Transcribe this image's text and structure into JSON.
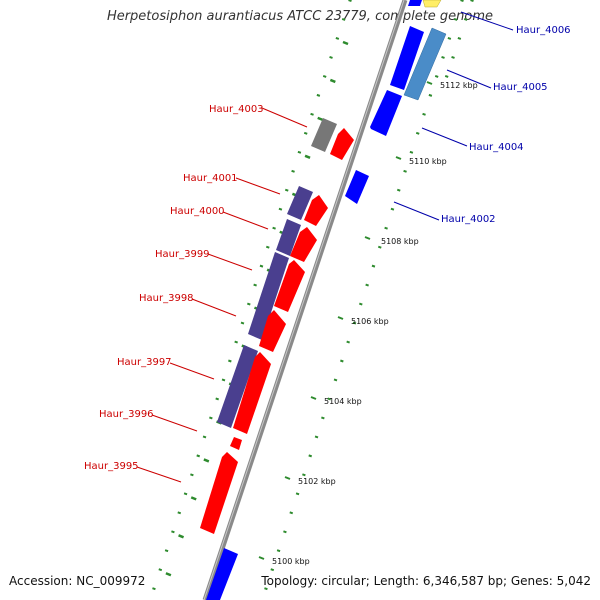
{
  "title": "Herpetosiphon aurantiacus ATCC 23779, complete genome",
  "accession": "Accession: NC_009972",
  "summary": "Topology: circular; Length: 6,346,587 bp; Genes: 5,042",
  "colors": {
    "forward_gene": "#ff0000",
    "reverse_gene": "#0000ff",
    "reverse_gene_light": "#4a8cc8",
    "purple_gene": "#4a3f8f",
    "gray_gene": "#777777",
    "yellow_gene": "#e8d870",
    "backbone": "#808080",
    "tick_green": "#2e8b2e",
    "forward_label": "#cc0000",
    "reverse_label": "#0000aa"
  },
  "scale_labels": [
    {
      "text": "5100 kbp",
      "kbp": 5100
    },
    {
      "text": "5102 kbp",
      "kbp": 5102
    },
    {
      "text": "5104 kbp",
      "kbp": 5104
    },
    {
      "text": "5106 kbp",
      "kbp": 5106
    },
    {
      "text": "5108 kbp",
      "kbp": 5108
    },
    {
      "text": "5110 kbp",
      "kbp": 5110
    },
    {
      "text": "5112 kbp",
      "kbp": 5112
    }
  ],
  "gene_labels_left": [
    "Haur_4003",
    "Haur_4001",
    "Haur_4000",
    "Haur_3999",
    "Haur_3998",
    "Haur_3997",
    "Haur_3996",
    "Haur_3995"
  ],
  "gene_labels_right": [
    "Haur_4006",
    "Haur_4005",
    "Haur_4004",
    "Haur_4002"
  ]
}
